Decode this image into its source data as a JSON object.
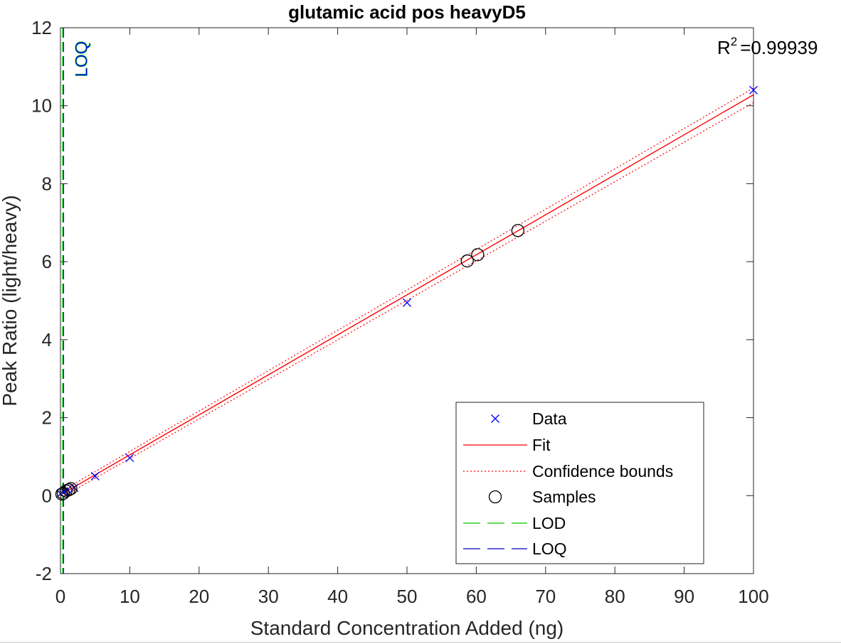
{
  "chart_data": {
    "type": "scatter",
    "title": "glutamic acid pos heavyD5",
    "xlabel": "Standard Concentration Added (ng)",
    "ylabel": "Peak Ratio (light/heavy)",
    "xlim": [
      0,
      100
    ],
    "ylim": [
      -2,
      12
    ],
    "xticks": [
      0,
      10,
      20,
      30,
      40,
      50,
      60,
      70,
      80,
      90,
      100
    ],
    "yticks": [
      -2,
      0,
      2,
      4,
      6,
      8,
      10,
      12
    ],
    "grid": false,
    "legend_position": "bottom-right",
    "r2_prefix": "R",
    "r2_sup": "2",
    "r2_value": "=0.99939",
    "lod_x": 0.3,
    "loq_x": 0.45,
    "loq_label": "LOQ",
    "series": [
      {
        "name": "Data",
        "marker": "x",
        "color": "#0000ff",
        "x": [
          0,
          0.5,
          1,
          2,
          5,
          10,
          50,
          100
        ],
        "y": [
          0.05,
          0.1,
          0.15,
          0.2,
          0.5,
          0.97,
          4.95,
          10.4
        ]
      },
      {
        "name": "Fit",
        "style": "solid",
        "color": "#ff0000",
        "x": [
          0,
          100
        ],
        "y": [
          0.02,
          10.28
        ]
      },
      {
        "name": "Confidence bounds",
        "style": "dotted",
        "color": "#ff0000",
        "upper": {
          "x": [
            0,
            100
          ],
          "y": [
            0.1,
            10.45
          ]
        },
        "lower": {
          "x": [
            0,
            100
          ],
          "y": [
            -0.06,
            10.08
          ]
        }
      },
      {
        "name": "Samples",
        "marker": "o",
        "color": "#000000",
        "x": [
          0.2,
          0.4,
          0.8,
          1.2,
          1.5,
          58.7,
          60.2,
          66.0
        ],
        "y": [
          0.04,
          0.06,
          0.12,
          0.15,
          0.18,
          6.02,
          6.18,
          6.8
        ]
      },
      {
        "name": "LOD",
        "style": "dashed",
        "color": "#00c800"
      },
      {
        "name": "LOQ",
        "style": "dashed",
        "color": "#0000c0"
      }
    ]
  }
}
